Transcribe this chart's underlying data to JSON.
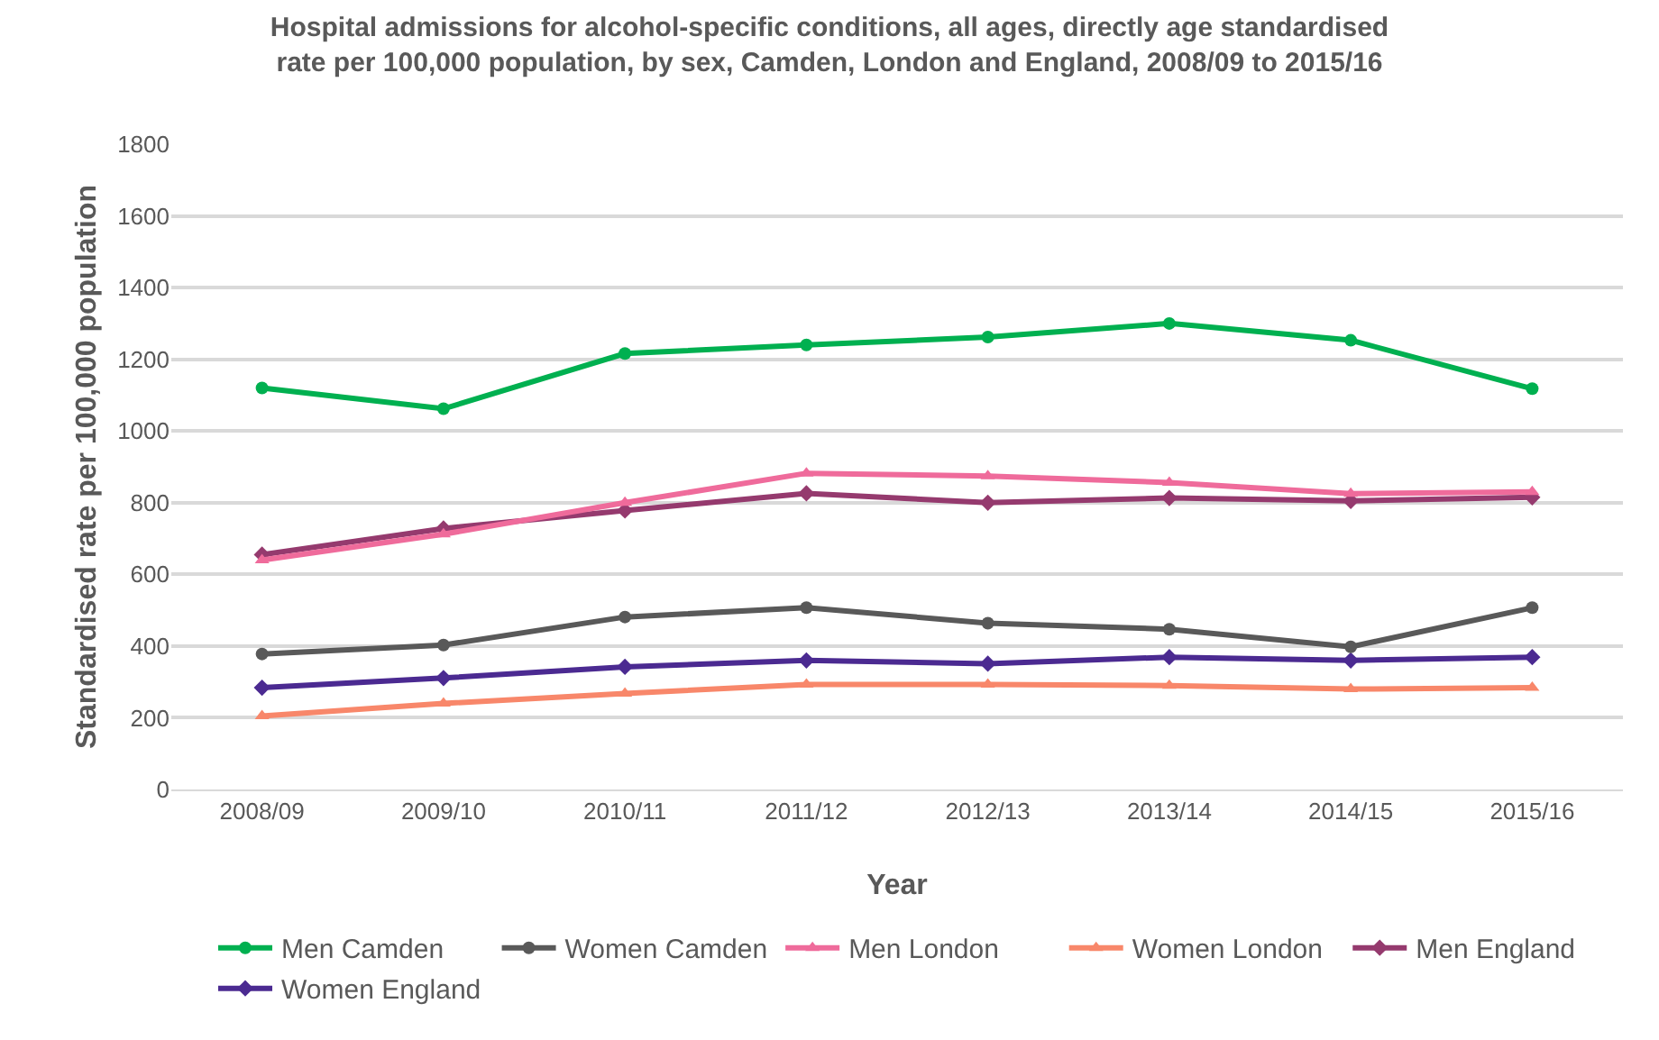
{
  "chart_data": {
    "type": "line",
    "title": "Hospital admissions for alcohol-specific conditions, all ages, directly age standardised\nrate per 100,000 population, by sex, Camden, London and England, 2008/09 to 2015/16",
    "xlabel": "Year",
    "ylabel": "Standardised rate per 100,000 population",
    "categories": [
      "2008/09",
      "2009/10",
      "2010/11",
      "2011/12",
      "2012/13",
      "2013/14",
      "2014/15",
      "2015/16"
    ],
    "series": [
      {
        "name": "Men Camden",
        "color": "#00b050",
        "marker": "circle",
        "values": [
          1120,
          1062,
          1216,
          1240,
          1262,
          1300,
          1253,
          1118
        ]
      },
      {
        "name": "Women Camden",
        "color": "#595959",
        "marker": "circle",
        "values": [
          378,
          403,
          481,
          507,
          464,
          447,
          398,
          507
        ]
      },
      {
        "name": "Men London",
        "color": "#ef6b9b",
        "marker": "triangle",
        "values": [
          640,
          712,
          800,
          882,
          874,
          856,
          825,
          830
        ]
      },
      {
        "name": "Women London",
        "color": "#f8876a",
        "marker": "triangle",
        "values": [
          205,
          240,
          268,
          293,
          293,
          290,
          280,
          284
        ]
      },
      {
        "name": "Men England",
        "color": "#953a6e",
        "marker": "diamond",
        "values": [
          655,
          728,
          778,
          826,
          800,
          813,
          805,
          815
        ]
      },
      {
        "name": "Women England",
        "color": "#4b2a91",
        "marker": "diamond",
        "values": [
          284,
          311,
          342,
          360,
          351,
          369,
          360,
          369
        ]
      }
    ],
    "ylim": [
      0,
      1800
    ],
    "yticks": [
      0,
      200,
      400,
      600,
      800,
      1000,
      1200,
      1400,
      1600,
      1800
    ],
    "grid": "y",
    "legend": "bottom",
    "line_style": "solid"
  }
}
